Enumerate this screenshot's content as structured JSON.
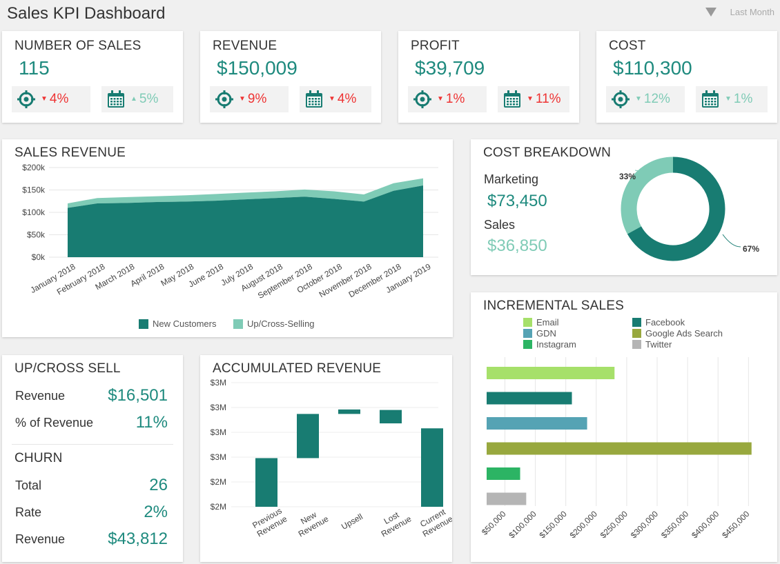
{
  "header": {
    "title": "Sales KPI Dashboard",
    "period": "Last Month"
  },
  "kpis": [
    {
      "title": "NUMBER OF SALES",
      "value": "115",
      "target_change": "4%",
      "target_dir": "down",
      "target_color": "red",
      "period_change": "5%",
      "period_dir": "up",
      "period_color": "teal"
    },
    {
      "title": "REVENUE",
      "value": "$150,009",
      "target_change": "9%",
      "target_dir": "down",
      "target_color": "red",
      "period_change": "4%",
      "period_dir": "down",
      "period_color": "red"
    },
    {
      "title": "PROFIT",
      "value": "$39,709",
      "target_change": "1%",
      "target_dir": "down",
      "target_color": "red",
      "period_change": "11%",
      "period_dir": "down",
      "period_color": "red"
    },
    {
      "title": "COST",
      "value": "$110,300",
      "target_change": "12%",
      "target_dir": "down",
      "target_color": "teal",
      "period_change": "1%",
      "period_dir": "down",
      "period_color": "teal"
    }
  ],
  "icons": {
    "target": "target-icon",
    "calendar": "calendar-icon"
  },
  "colors": {
    "teal_dark": "#187c72",
    "teal_light": "#7fcbb6",
    "red": "#e33333"
  },
  "sales_revenue": {
    "title": "SALES REVENUE",
    "chart_data": {
      "type": "area",
      "categories": [
        "January 2018",
        "February 2018",
        "March 2018",
        "April 2018",
        "May 2018",
        "June 2018",
        "July 2018",
        "August 2018",
        "September 2018",
        "October 2018",
        "November 2018",
        "December 2018",
        "January 2019"
      ],
      "series": [
        {
          "name": "New Customers",
          "values": [
            110000,
            120000,
            121000,
            123000,
            124000,
            126000,
            129000,
            132000,
            135000,
            130000,
            124000,
            148000,
            160000
          ],
          "color": "#187c72"
        },
        {
          "name": "Up/Cross-Selling",
          "values": [
            10000,
            12000,
            13000,
            13000,
            14000,
            15000,
            15000,
            15000,
            16000,
            17000,
            16000,
            17000,
            16000
          ],
          "color": "#7fcbb6"
        }
      ],
      "y_ticks": [
        "$0k",
        "$50k",
        "$100k",
        "$150k",
        "$200k"
      ],
      "ylim": [
        0,
        200000
      ],
      "stacked": true,
      "legend": "bottom",
      "grid": true
    }
  },
  "cost_breakdown": {
    "title": "COST BREAKDOWN",
    "marketing_label": "Marketing",
    "marketing_value": "$73,450",
    "sales_label": "Sales",
    "sales_value": "$36,850",
    "chart_data": {
      "type": "pie",
      "donut": true,
      "slices": [
        {
          "name": "Marketing",
          "value": 67,
          "label": "67%",
          "color": "#187c72"
        },
        {
          "name": "Sales",
          "value": 33,
          "label": "33%",
          "color": "#7fcbb6"
        }
      ]
    }
  },
  "incremental_sales": {
    "title": "INCREMENTAL SALES",
    "chart_data": {
      "type": "bar",
      "orientation": "horizontal",
      "categories": [
        "Email",
        "Facebook",
        "GDN",
        "Google Ads Search",
        "Instagram",
        "Twitter"
      ],
      "values": [
        230000,
        160000,
        185000,
        455000,
        75000,
        85000
      ],
      "colors": [
        "#a6e06a",
        "#187c72",
        "#55a3b4",
        "#98a83e",
        "#2cb464",
        "#b5b5b5"
      ],
      "x_ticks": [
        "$50,000",
        "$100,000",
        "$150,000",
        "$200,000",
        "$250,000",
        "$300,000",
        "$350,000",
        "$400,000",
        "$450,000"
      ],
      "xlim": [
        20000,
        470000
      ],
      "legend": "top",
      "grid": true
    }
  },
  "upsell": {
    "title": "UP/CROSS SELL",
    "revenue_label": "Revenue",
    "revenue_value": "$16,501",
    "pct_label": "% of Revenue",
    "pct_value": "11%"
  },
  "churn": {
    "title": "CHURN",
    "total_label": "Total",
    "total_value": "26",
    "rate_label": "Rate",
    "rate_value": "2%",
    "revenue_label": "Revenue",
    "revenue_value": "$43,812"
  },
  "accumulated_revenue": {
    "title": "ACCUMULATED REVENUE",
    "chart_data": {
      "type": "bar",
      "waterfall": true,
      "categories": [
        "Previous Revenue",
        "New Revenue",
        "Upsell",
        "Lost Revenue",
        "Current Revenue"
      ],
      "category_lines": [
        [
          "Previous",
          "Revenue"
        ],
        [
          "New",
          "Revenue"
        ],
        [
          "Upsell"
        ],
        [
          "Lost",
          "Revenue"
        ],
        [
          "Current",
          "Revenue"
        ]
      ],
      "ranges": [
        [
          2.0,
          2.98
        ],
        [
          2.98,
          3.87
        ],
        [
          3.87,
          3.96
        ],
        [
          3.68,
          3.95
        ],
        [
          2.0,
          3.58
        ]
      ],
      "y_ticks": [
        "$2M",
        "$2M",
        "$3M",
        "$3M",
        "$3M",
        "$3M"
      ],
      "ylim": [
        2.0,
        4.5
      ],
      "color": "#187c72",
      "grid": true
    }
  }
}
